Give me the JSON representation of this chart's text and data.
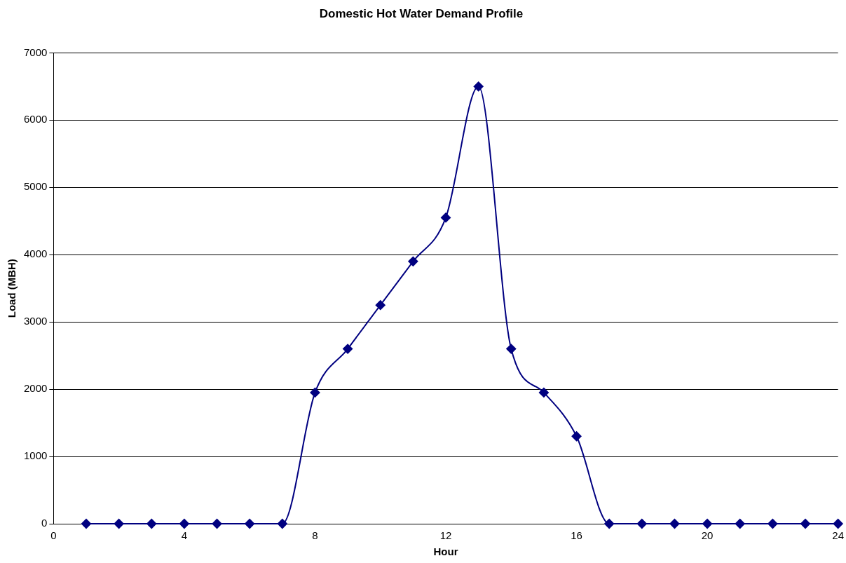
{
  "chart_data": {
    "type": "line",
    "title": "Domestic Hot Water Demand Profile",
    "xlabel": "Hour",
    "ylabel": "Load (MBH)",
    "x": [
      1,
      2,
      3,
      4,
      5,
      6,
      7,
      8,
      9,
      10,
      11,
      12,
      13,
      14,
      15,
      16,
      17,
      18,
      19,
      20,
      21,
      22,
      23,
      24
    ],
    "series": [
      {
        "color": "#000080",
        "values": [
          0,
          0,
          0,
          0,
          0,
          0,
          0,
          1950,
          2600,
          3250,
          3900,
          4550,
          6500,
          2600,
          1950,
          1300,
          0,
          0,
          0,
          0,
          0,
          0,
          0,
          0
        ]
      }
    ],
    "xlim": [
      0,
      24
    ],
    "xticks": [
      0,
      4,
      8,
      12,
      16,
      20,
      24
    ],
    "ylim": [
      0,
      7000
    ],
    "yticks": [
      0,
      1000,
      2000,
      3000,
      4000,
      5000,
      6000,
      7000
    ],
    "grid": "y",
    "marker": "diamond",
    "line_style": "solid"
  }
}
